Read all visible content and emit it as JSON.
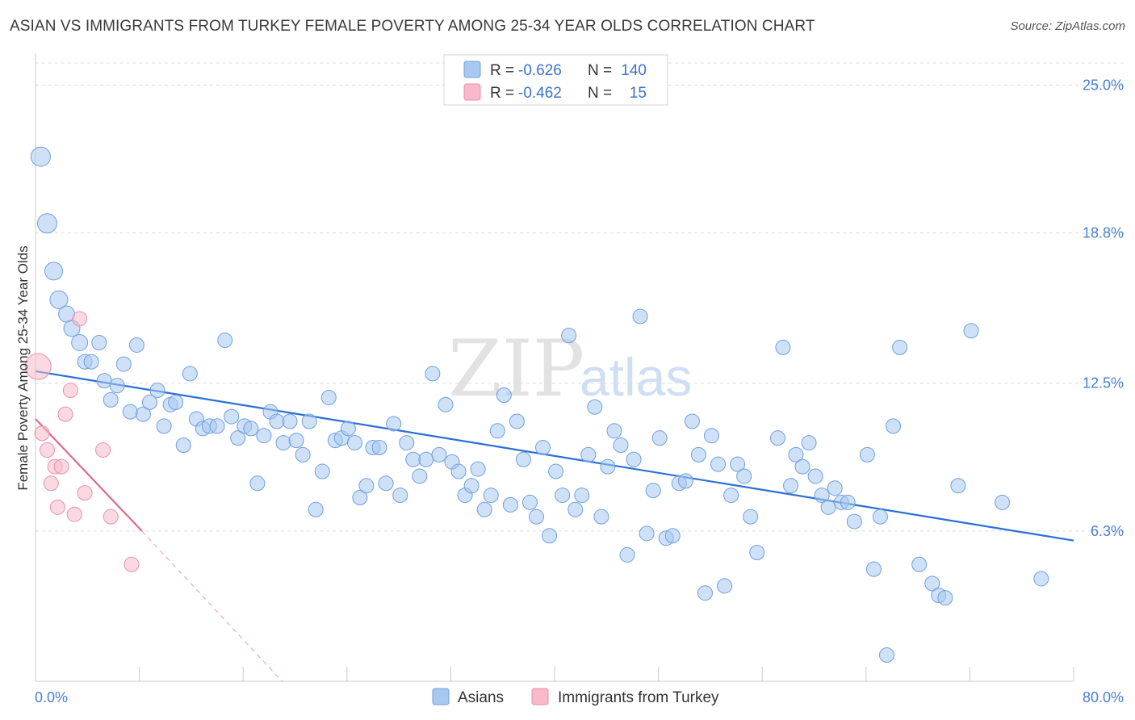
{
  "title": "ASIAN VS IMMIGRANTS FROM TURKEY FEMALE POVERTY AMONG 25-34 YEAR OLDS CORRELATION CHART",
  "source": "Source: ZipAtlas.com",
  "watermark": {
    "zip": "ZIP",
    "atlas": "atlas"
  },
  "chart_data": {
    "type": "scatter",
    "title": "ASIAN VS IMMIGRANTS FROM TURKEY FEMALE POVERTY AMONG 25-34 YEAR OLDS CORRELATION CHART",
    "xlabel": "",
    "ylabel": "Female Poverty Among 25-34 Year Olds",
    "xlim": [
      0,
      80
    ],
    "ylim": [
      0,
      26.2
    ],
    "x_tick_labels": {
      "min": "0.0%",
      "max": "80.0%"
    },
    "y_ticks": [
      {
        "value": 25.0,
        "label": "25.0%"
      },
      {
        "value": 18.8,
        "label": "18.8%"
      },
      {
        "value": 12.5,
        "label": "12.5%"
      },
      {
        "value": 6.3,
        "label": "6.3%"
      }
    ],
    "legend": {
      "r_label": "R =",
      "n_label": "N =",
      "entries": [
        {
          "name": "Asians",
          "r": "-0.626",
          "n": "140",
          "color": "#a8c8f0",
          "stroke": "#6f9fe0"
        },
        {
          "name": "Immigrants from Turkey",
          "r": "-0.462",
          "n": "15",
          "color": "#f7b9cb",
          "stroke": "#e890ab"
        }
      ]
    },
    "series": [
      {
        "name": "Asians",
        "color": "#a8c8f0",
        "stroke": "#6f9fe0",
        "trend": {
          "x0": 0,
          "y0": 13.0,
          "x1": 80,
          "y1": 5.9,
          "color": "#2a6fd6"
        },
        "points": [
          [
            0.4,
            22.0,
            12
          ],
          [
            0.9,
            19.2,
            12
          ],
          [
            1.4,
            17.2,
            11
          ],
          [
            1.8,
            16.0,
            11
          ],
          [
            2.4,
            15.4,
            10
          ],
          [
            2.8,
            14.8,
            10
          ],
          [
            3.4,
            14.2,
            10
          ],
          [
            3.8,
            13.4,
            9
          ],
          [
            4.3,
            13.4,
            9
          ],
          [
            4.9,
            14.2,
            9
          ],
          [
            5.3,
            12.6,
            9
          ],
          [
            5.8,
            11.8,
            9
          ],
          [
            6.3,
            12.4,
            9
          ],
          [
            6.8,
            13.3,
            9
          ],
          [
            7.3,
            11.3,
            9
          ],
          [
            7.8,
            14.1,
            9
          ],
          [
            8.3,
            11.2,
            9
          ],
          [
            8.8,
            11.7,
            9
          ],
          [
            9.4,
            12.2,
            9
          ],
          [
            9.9,
            10.7,
            9
          ],
          [
            10.4,
            11.6,
            9
          ],
          [
            10.8,
            11.7,
            9
          ],
          [
            11.4,
            9.9,
            9
          ],
          [
            11.9,
            12.9,
            9
          ],
          [
            12.4,
            11.0,
            9
          ],
          [
            12.9,
            10.6,
            9
          ],
          [
            13.4,
            10.7,
            9
          ],
          [
            14.0,
            10.7,
            9
          ],
          [
            14.6,
            14.3,
            9
          ],
          [
            15.1,
            11.1,
            9
          ],
          [
            15.6,
            10.2,
            9
          ],
          [
            16.1,
            10.7,
            9
          ],
          [
            16.6,
            10.6,
            9
          ],
          [
            17.1,
            8.3,
            9
          ],
          [
            17.6,
            10.3,
            9
          ],
          [
            18.1,
            11.3,
            9
          ],
          [
            18.6,
            10.9,
            9
          ],
          [
            19.1,
            10.0,
            9
          ],
          [
            19.6,
            10.9,
            9
          ],
          [
            20.1,
            10.1,
            9
          ],
          [
            20.6,
            9.5,
            9
          ],
          [
            21.1,
            10.9,
            9
          ],
          [
            21.6,
            7.2,
            9
          ],
          [
            22.1,
            8.8,
            9
          ],
          [
            22.6,
            11.9,
            9
          ],
          [
            23.1,
            10.1,
            9
          ],
          [
            23.6,
            10.2,
            9
          ],
          [
            24.1,
            10.6,
            9
          ],
          [
            24.6,
            10.0,
            9
          ],
          [
            25.0,
            7.7,
            9
          ],
          [
            25.5,
            8.2,
            9
          ],
          [
            26.0,
            9.8,
            9
          ],
          [
            26.5,
            9.8,
            9
          ],
          [
            27.0,
            8.3,
            9
          ],
          [
            27.6,
            10.8,
            9
          ],
          [
            28.1,
            7.8,
            9
          ],
          [
            28.6,
            10.0,
            9
          ],
          [
            29.1,
            9.3,
            9
          ],
          [
            29.6,
            8.6,
            9
          ],
          [
            30.1,
            9.3,
            9
          ],
          [
            30.6,
            12.9,
            9
          ],
          [
            31.1,
            9.5,
            9
          ],
          [
            31.6,
            11.6,
            9
          ],
          [
            32.1,
            9.2,
            9
          ],
          [
            32.6,
            8.8,
            9
          ],
          [
            33.1,
            7.8,
            9
          ],
          [
            33.6,
            8.2,
            9
          ],
          [
            34.1,
            8.9,
            9
          ],
          [
            34.6,
            7.2,
            9
          ],
          [
            35.1,
            7.8,
            9
          ],
          [
            35.6,
            10.5,
            9
          ],
          [
            36.1,
            12.0,
            9
          ],
          [
            36.6,
            7.4,
            9
          ],
          [
            37.1,
            10.9,
            9
          ],
          [
            37.6,
            9.3,
            9
          ],
          [
            38.1,
            7.5,
            9
          ],
          [
            38.6,
            6.9,
            9
          ],
          [
            39.1,
            9.8,
            9
          ],
          [
            39.6,
            6.1,
            9
          ],
          [
            40.1,
            8.8,
            9
          ],
          [
            40.6,
            7.8,
            9
          ],
          [
            41.1,
            14.5,
            9
          ],
          [
            41.6,
            7.2,
            9
          ],
          [
            42.1,
            7.8,
            9
          ],
          [
            42.6,
            9.5,
            9
          ],
          [
            43.1,
            11.5,
            9
          ],
          [
            43.6,
            6.9,
            9
          ],
          [
            44.1,
            9.0,
            9
          ],
          [
            44.6,
            10.5,
            9
          ],
          [
            45.1,
            9.9,
            9
          ],
          [
            45.6,
            5.3,
            9
          ],
          [
            46.1,
            9.3,
            9
          ],
          [
            46.6,
            15.3,
            9
          ],
          [
            47.1,
            6.2,
            9
          ],
          [
            47.6,
            8.0,
            9
          ],
          [
            48.1,
            10.2,
            9
          ],
          [
            48.6,
            6.0,
            9
          ],
          [
            49.1,
            6.1,
            9
          ],
          [
            49.6,
            8.3,
            9
          ],
          [
            50.1,
            8.4,
            9
          ],
          [
            50.6,
            10.9,
            9
          ],
          [
            51.1,
            9.5,
            9
          ],
          [
            51.6,
            3.7,
            9
          ],
          [
            52.1,
            10.3,
            9
          ],
          [
            52.6,
            9.1,
            9
          ],
          [
            53.1,
            4.0,
            9
          ],
          [
            53.6,
            7.8,
            9
          ],
          [
            54.1,
            9.1,
            9
          ],
          [
            54.6,
            8.6,
            9
          ],
          [
            55.1,
            6.9,
            9
          ],
          [
            55.6,
            5.4,
            9
          ],
          [
            57.2,
            10.2,
            9
          ],
          [
            57.6,
            14.0,
            9
          ],
          [
            58.2,
            8.2,
            9
          ],
          [
            58.6,
            9.5,
            9
          ],
          [
            59.1,
            9.0,
            9
          ],
          [
            59.6,
            10.0,
            9
          ],
          [
            60.1,
            8.6,
            9
          ],
          [
            60.6,
            7.8,
            9
          ],
          [
            61.1,
            7.3,
            9
          ],
          [
            61.6,
            8.1,
            9
          ],
          [
            62.1,
            7.5,
            9
          ],
          [
            62.6,
            7.5,
            9
          ],
          [
            63.1,
            6.7,
            9
          ],
          [
            64.1,
            9.5,
            9
          ],
          [
            64.6,
            4.7,
            9
          ],
          [
            65.1,
            6.9,
            9
          ],
          [
            65.6,
            1.1,
            9
          ],
          [
            66.1,
            10.7,
            9
          ],
          [
            66.6,
            14.0,
            9
          ],
          [
            68.1,
            4.9,
            9
          ],
          [
            69.1,
            4.1,
            9
          ],
          [
            69.6,
            3.6,
            9
          ],
          [
            70.1,
            3.5,
            9
          ],
          [
            71.1,
            8.2,
            9
          ],
          [
            72.1,
            14.7,
            9
          ],
          [
            74.5,
            7.5,
            9
          ],
          [
            77.5,
            4.3,
            9
          ]
        ]
      },
      {
        "name": "Immigrants from Turkey",
        "color": "#f7b9cb",
        "stroke": "#e890ab",
        "trend": {
          "x0": 0,
          "y0": 11.0,
          "x1": 8.2,
          "y1": 6.3,
          "dash_x1": 19.0,
          "dash_y1": 0,
          "color": "#e06a91"
        },
        "points": [
          [
            0.2,
            13.2,
            16
          ],
          [
            0.5,
            10.4,
            9
          ],
          [
            0.9,
            9.7,
            9
          ],
          [
            1.2,
            8.3,
            9
          ],
          [
            1.5,
            9.0,
            9
          ],
          [
            1.7,
            7.3,
            9
          ],
          [
            2.0,
            9.0,
            9
          ],
          [
            2.3,
            11.2,
            9
          ],
          [
            2.7,
            12.2,
            9
          ],
          [
            3.0,
            7.0,
            9
          ],
          [
            3.4,
            15.2,
            9
          ],
          [
            3.8,
            7.9,
            9
          ],
          [
            5.2,
            9.7,
            9
          ],
          [
            5.8,
            6.9,
            9
          ],
          [
            7.4,
            4.9,
            9
          ]
        ]
      }
    ]
  }
}
